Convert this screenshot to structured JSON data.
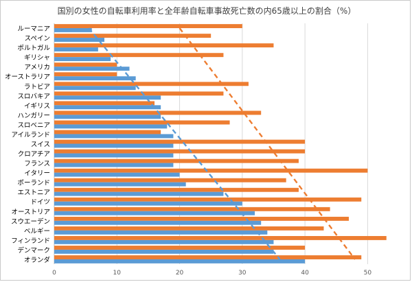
{
  "chart_data": {
    "type": "bar",
    "orientation": "horizontal",
    "title": "国別の女性の自転車利用率と全年齢自転車事故死亡数の内65歳以上の割合（%）",
    "xlabel": "",
    "ylabel": "",
    "xlim": [
      0,
      55
    ],
    "xticks": [
      0,
      10,
      20,
      30,
      40,
      50
    ],
    "grid": true,
    "legend": "none",
    "categories": [
      "ルーマニア",
      "スペイン",
      "ポルトガル",
      "ギリシャ",
      "アメリカ",
      "オーストラリア",
      "ラトビア",
      "スロバキア",
      "イギリス",
      "ハンガリー",
      "スロベニア",
      "アイルランド",
      "スイス",
      "クロアチア",
      "フランス",
      "イタリー",
      "ポーランド",
      "エストニア",
      "ドイツ",
      "オーストリア",
      "スウエーデン",
      "ベルギー",
      "フィンランド",
      "デンマーク",
      "オランダ"
    ],
    "series": [
      {
        "color": "#5b9bd5",
        "values": [
          6,
          8,
          7,
          9,
          12,
          13,
          13,
          17,
          17,
          17,
          18,
          19,
          19,
          19,
          19,
          20,
          21,
          27,
          30,
          32,
          33,
          34,
          35,
          35,
          40
        ],
        "trendline": {
          "from": [
            5.5,
            0
          ],
          "to": [
            36,
            24
          ]
        }
      },
      {
        "color": "#ed7d31",
        "values": [
          30,
          25,
          35,
          27,
          10,
          10,
          31,
          27,
          16,
          33,
          28,
          17,
          40,
          40,
          39,
          50,
          37,
          39,
          49,
          44,
          47,
          43,
          53,
          40,
          49
        ],
        "trendline": {
          "from": [
            20,
            0
          ],
          "to": [
            48,
            24
          ]
        }
      }
    ]
  }
}
